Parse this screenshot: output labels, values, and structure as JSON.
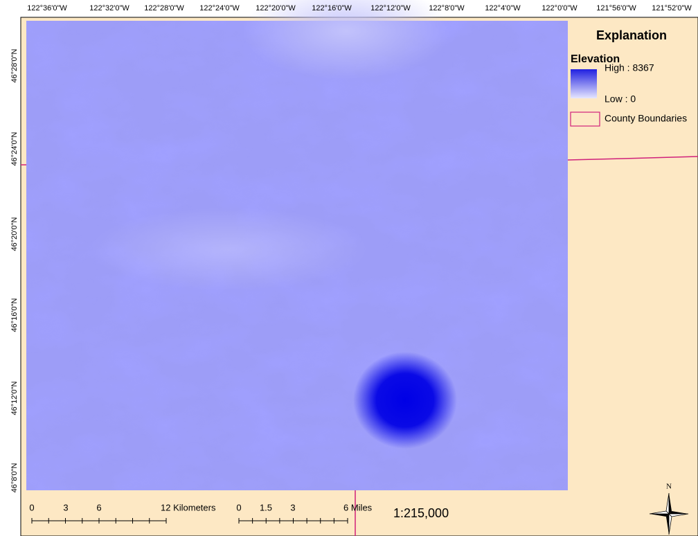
{
  "top_labels": [
    "122°36'0\"W",
    "122°32'0\"W",
    "122°28'0\"W",
    "122°24'0\"W",
    "122°20'0\"W",
    "122°16'0\"W",
    "122°12'0\"W",
    "122°8'0\"W",
    "122°4'0\"W",
    "122°0'0\"W",
    "121°56'0\"W",
    "121°52'0\"W"
  ],
  "left_labels": [
    "46°28'0\"N",
    "46°24'0\"N",
    "46°20'0\"N",
    "46°16'0\"N",
    "46°12'0\"N",
    "46°8'0\"N"
  ],
  "legend": {
    "title": "Explanation",
    "elevation_title": "Elevation",
    "high": "High : 8367",
    "low": "Low : 0",
    "county": "County Boundaries"
  },
  "scale_km": {
    "labels": [
      "0",
      "3",
      "6",
      "12 Kilometers"
    ]
  },
  "scale_mi": {
    "labels": [
      "0",
      "1.5",
      "3",
      "6 Miles"
    ]
  },
  "scale_ratio": "1:215,000",
  "north": "N"
}
